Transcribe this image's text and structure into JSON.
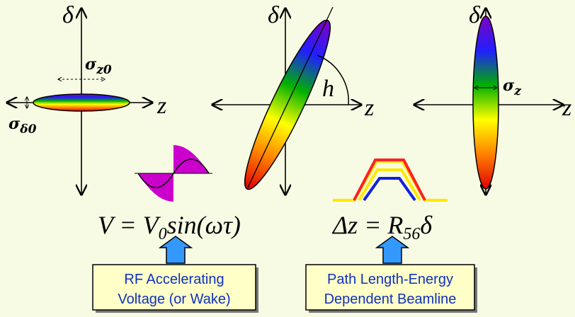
{
  "panels": [
    {
      "delta": "δ",
      "z": "z",
      "sigma_z": {
        "symbol": "σ",
        "sub": "z0"
      },
      "sigma_delta": {
        "symbol": "σ",
        "sub": "δ0"
      }
    },
    {
      "delta": "δ",
      "z": "z",
      "h": "h"
    },
    {
      "delta": "δ",
      "z": "z",
      "sigma_z": {
        "symbol": "σ",
        "sub": "z"
      }
    }
  ],
  "equations": [
    {
      "parts": [
        "V = V",
        "0",
        "sin(ωτ)"
      ]
    },
    {
      "parts": [
        "Δz = R",
        "56",
        "δ"
      ]
    }
  ],
  "boxes": [
    {
      "lines": [
        "RF Accelerating",
        "Voltage (or Wake)"
      ]
    },
    {
      "lines": [
        "Path Length-Energy",
        "Dependent Beamline"
      ]
    }
  ]
}
